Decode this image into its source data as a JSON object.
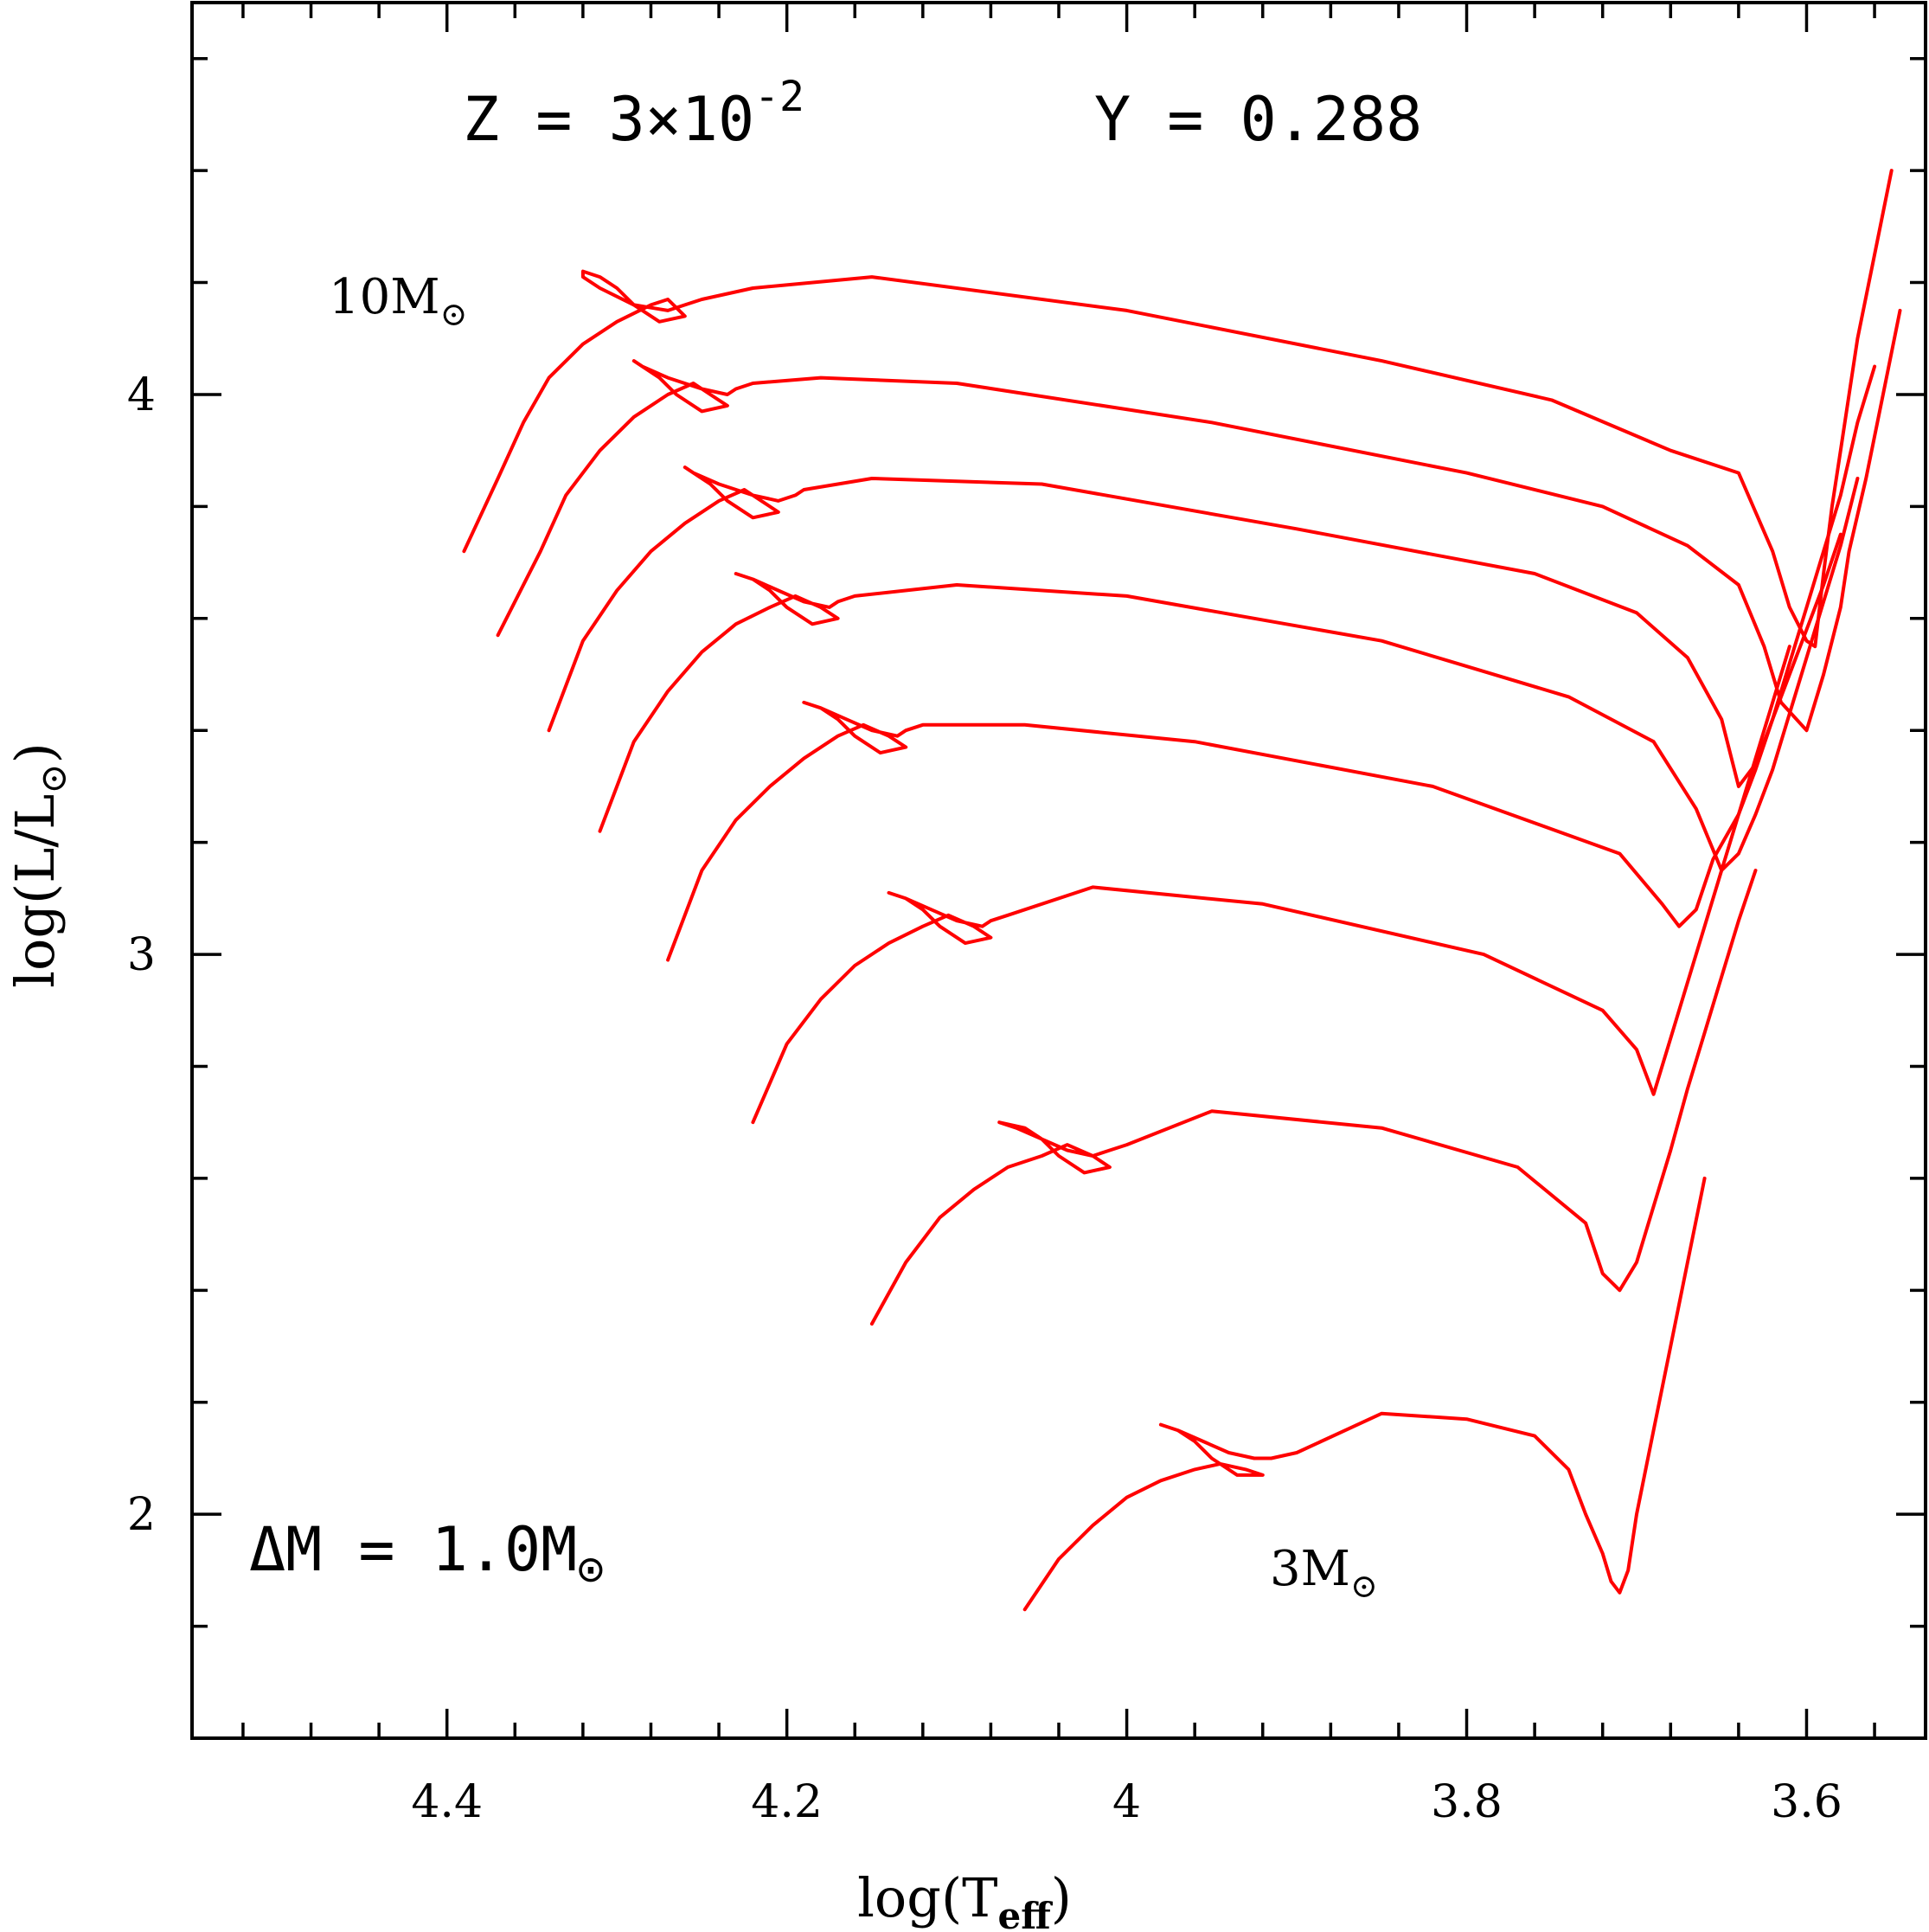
{
  "chart_data": {
    "type": "line",
    "xlabel": "log(T",
    "xlabel_sub": "eff",
    "xlabel_close": ")",
    "ylabel": "log(L/L",
    "ylabel_sub": "⊙",
    "ylabel_close": ")",
    "xlim": [
      4.55,
      3.53
    ],
    "ylim": [
      1.6,
      4.7
    ],
    "x_ticks": [
      "4.4",
      "4.2",
      "4",
      "3.8",
      "3.6"
    ],
    "x_tick_values": [
      4.4,
      4.2,
      4.0,
      3.8,
      3.6
    ],
    "y_ticks": [
      "2",
      "3",
      "4"
    ],
    "y_tick_values": [
      2,
      3,
      4
    ],
    "x_minor_step": 0.04,
    "y_minor_step": 0.2,
    "series_color": "#ff0000",
    "grid": false,
    "annotations": {
      "z_label": "Z = 3×10",
      "z_exponent": "-2",
      "y_label": "Y = 0.288",
      "top_mass": "10M",
      "top_mass_sub": "⊙",
      "bottom_mass": "3M",
      "bottom_mass_sub": "⊙",
      "delta_m": "ΔM = 1.0M",
      "delta_m_sub": "⊙"
    },
    "series": [
      {
        "x": [
          4.39,
          4.37,
          4.355,
          4.34,
          4.32,
          4.3,
          4.28,
          4.27,
          4.26,
          4.275,
          4.29,
          4.3,
          4.31,
          4.32,
          4.32,
          4.31,
          4.29,
          4.27,
          4.26,
          4.25,
          4.22,
          4.15,
          4.0,
          3.85,
          3.75,
          3.68,
          3.64,
          3.62,
          3.61,
          3.6,
          3.595,
          3.59,
          3.585,
          3.58,
          3.575,
          3.57,
          3.56,
          3.55
        ],
        "y": [
          3.72,
          3.85,
          3.95,
          4.03,
          4.09,
          4.13,
          4.16,
          4.17,
          4.14,
          4.13,
          4.16,
          4.19,
          4.21,
          4.22,
          4.21,
          4.19,
          4.16,
          4.15,
          4.16,
          4.17,
          4.19,
          4.21,
          4.15,
          4.06,
          3.99,
          3.9,
          3.86,
          3.72,
          3.62,
          3.56,
          3.55,
          3.68,
          3.8,
          3.9,
          4.0,
          4.1,
          4.25,
          4.4
        ]
      },
      {
        "x": [
          4.37,
          4.345,
          4.33,
          4.31,
          4.29,
          4.27,
          4.255,
          4.245,
          4.235,
          4.25,
          4.265,
          4.275,
          4.285,
          4.29,
          4.285,
          4.27,
          4.25,
          4.235,
          4.23,
          4.22,
          4.18,
          4.1,
          3.95,
          3.8,
          3.72,
          3.67,
          3.64,
          3.625,
          3.615,
          3.6,
          3.59,
          3.58,
          3.575,
          3.565,
          3.555,
          3.545
        ],
        "y": [
          3.57,
          3.72,
          3.82,
          3.9,
          3.96,
          4.0,
          4.02,
          4.0,
          3.98,
          3.97,
          4.0,
          4.03,
          4.05,
          4.06,
          4.05,
          4.03,
          4.01,
          4.0,
          4.01,
          4.02,
          4.03,
          4.02,
          3.95,
          3.86,
          3.8,
          3.73,
          3.66,
          3.55,
          3.45,
          3.4,
          3.5,
          3.62,
          3.72,
          3.85,
          4.0,
          4.15
        ]
      },
      {
        "x": [
          4.34,
          4.32,
          4.3,
          4.28,
          4.26,
          4.24,
          4.225,
          4.215,
          4.205,
          4.22,
          4.235,
          4.245,
          4.255,
          4.26,
          4.255,
          4.24,
          4.22,
          4.205,
          4.195,
          4.19,
          4.15,
          4.05,
          3.9,
          3.76,
          3.7,
          3.67,
          3.65,
          3.64,
          3.63,
          3.62,
          3.61,
          3.6,
          3.59,
          3.58,
          3.57,
          3.56
        ],
        "y": [
          3.4,
          3.56,
          3.65,
          3.72,
          3.77,
          3.81,
          3.83,
          3.81,
          3.79,
          3.78,
          3.81,
          3.84,
          3.86,
          3.87,
          3.86,
          3.84,
          3.82,
          3.81,
          3.82,
          3.83,
          3.85,
          3.84,
          3.76,
          3.68,
          3.61,
          3.53,
          3.42,
          3.3,
          3.34,
          3.42,
          3.52,
          3.62,
          3.72,
          3.82,
          3.95,
          4.05
        ]
      },
      {
        "x": [
          4.31,
          4.29,
          4.27,
          4.25,
          4.23,
          4.21,
          4.195,
          4.18,
          4.17,
          4.185,
          4.2,
          4.21,
          4.22,
          4.23,
          4.22,
          4.205,
          4.19,
          4.175,
          4.17,
          4.16,
          4.1,
          4.0,
          3.85,
          3.74,
          3.69,
          3.665,
          3.65,
          3.64,
          3.63,
          3.62,
          3.61,
          3.6,
          3.59,
          3.58,
          3.57
        ],
        "y": [
          3.22,
          3.38,
          3.47,
          3.54,
          3.59,
          3.62,
          3.64,
          3.62,
          3.6,
          3.59,
          3.62,
          3.65,
          3.67,
          3.68,
          3.67,
          3.65,
          3.63,
          3.62,
          3.63,
          3.64,
          3.66,
          3.64,
          3.56,
          3.46,
          3.38,
          3.26,
          3.15,
          3.18,
          3.25,
          3.33,
          3.43,
          3.53,
          3.63,
          3.73,
          3.85
        ]
      },
      {
        "x": [
          4.27,
          4.25,
          4.23,
          4.21,
          4.19,
          4.17,
          4.155,
          4.14,
          4.13,
          4.145,
          4.16,
          4.17,
          4.18,
          4.19,
          4.18,
          4.165,
          4.15,
          4.135,
          4.13,
          4.12,
          4.06,
          3.96,
          3.82,
          3.71,
          3.685,
          3.675,
          3.665,
          3.655,
          3.64,
          3.63,
          3.62,
          3.61,
          3.6,
          3.59,
          3.58
        ],
        "y": [
          2.99,
          3.15,
          3.24,
          3.3,
          3.35,
          3.39,
          3.41,
          3.39,
          3.37,
          3.36,
          3.39,
          3.42,
          3.44,
          3.45,
          3.44,
          3.42,
          3.4,
          3.39,
          3.4,
          3.41,
          3.41,
          3.38,
          3.3,
          3.18,
          3.09,
          3.05,
          3.08,
          3.17,
          3.25,
          3.33,
          3.42,
          3.5,
          3.58,
          3.66,
          3.75
        ]
      },
      {
        "x": [
          4.22,
          4.2,
          4.18,
          4.16,
          4.14,
          4.12,
          4.105,
          4.09,
          4.08,
          4.095,
          4.11,
          4.12,
          4.13,
          4.14,
          4.13,
          4.115,
          4.1,
          4.085,
          4.08,
          4.07,
          4.02,
          3.92,
          3.79,
          3.72,
          3.7,
          3.69,
          3.68,
          3.67,
          3.66,
          3.65,
          3.64,
          3.63,
          3.62,
          3.61
        ],
        "y": [
          2.7,
          2.84,
          2.92,
          2.98,
          3.02,
          3.05,
          3.07,
          3.05,
          3.03,
          3.02,
          3.05,
          3.08,
          3.1,
          3.11,
          3.1,
          3.08,
          3.06,
          3.05,
          3.06,
          3.07,
          3.12,
          3.09,
          3.0,
          2.9,
          2.83,
          2.75,
          2.85,
          2.95,
          3.05,
          3.15,
          3.25,
          3.35,
          3.45,
          3.55
        ]
      },
      {
        "x": [
          4.15,
          4.13,
          4.11,
          4.09,
          4.07,
          4.05,
          4.035,
          4.02,
          4.01,
          4.025,
          4.04,
          4.05,
          4.06,
          4.075,
          4.065,
          4.05,
          4.035,
          4.02,
          4.01,
          4.0,
          3.95,
          3.85,
          3.77,
          3.73,
          3.72,
          3.71,
          3.7,
          3.69,
          3.68,
          3.67,
          3.66,
          3.65,
          3.64,
          3.63
        ],
        "y": [
          2.34,
          2.45,
          2.53,
          2.58,
          2.62,
          2.64,
          2.66,
          2.64,
          2.62,
          2.61,
          2.64,
          2.67,
          2.69,
          2.7,
          2.69,
          2.67,
          2.65,
          2.64,
          2.65,
          2.66,
          2.72,
          2.69,
          2.62,
          2.52,
          2.43,
          2.4,
          2.45,
          2.55,
          2.65,
          2.76,
          2.86,
          2.96,
          3.06,
          3.15
        ]
      },
      {
        "x": [
          4.06,
          4.04,
          4.02,
          4.0,
          3.98,
          3.96,
          3.945,
          3.93,
          3.92,
          3.935,
          3.95,
          3.96,
          3.97,
          3.98,
          3.97,
          3.955,
          3.94,
          3.925,
          3.915,
          3.9,
          3.85,
          3.8,
          3.76,
          3.74,
          3.73,
          3.72,
          3.715,
          3.71,
          3.705,
          3.7,
          3.69,
          3.68,
          3.67,
          3.66
        ],
        "y": [
          1.83,
          1.92,
          1.98,
          2.03,
          2.06,
          2.08,
          2.09,
          2.08,
          2.07,
          2.07,
          2.1,
          2.13,
          2.15,
          2.16,
          2.15,
          2.13,
          2.11,
          2.1,
          2.1,
          2.11,
          2.18,
          2.17,
          2.14,
          2.08,
          2.0,
          1.93,
          1.88,
          1.86,
          1.9,
          2.0,
          2.15,
          2.3,
          2.45,
          2.6
        ]
      }
    ]
  }
}
